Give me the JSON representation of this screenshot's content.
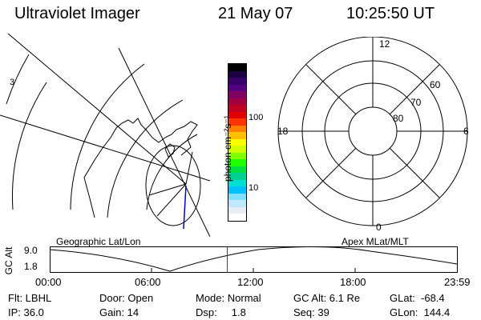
{
  "header": {
    "title": "Ultraviolet Imager",
    "date": "21 May 07",
    "time": "10:25:50 UT"
  },
  "geo_panel": {
    "label": "Geographic Lat/Lon",
    "edge_mark": "3"
  },
  "colorbar": {
    "unit_label": "photon cm⁻²s⁻¹",
    "ticks": [
      "100",
      "10"
    ],
    "colors": [
      "#000000",
      "#1a0040",
      "#3a006a",
      "#54007f",
      "#800060",
      "#a00040",
      "#c00020",
      "#e00000",
      "#ff3300",
      "#ff8000",
      "#ffc000",
      "#ffff00",
      "#d0ff00",
      "#80ff00",
      "#20ff00",
      "#00e040",
      "#00d090",
      "#00e0d0",
      "#00c0ff",
      "#80e0ff",
      "#c0e8ff",
      "#e6eef5",
      "#ffffff"
    ]
  },
  "polar_panel": {
    "label": "Apex MLat/MLT",
    "mlt_labels": {
      "top": "12",
      "right": "6",
      "bottom": "0",
      "left": "18"
    },
    "mlat_labels": [
      "60",
      "70",
      "80"
    ]
  },
  "altitude_plot": {
    "ylabel": "GC Alt",
    "yticks": [
      "9.0",
      "1.8"
    ],
    "xticks": [
      "00:00",
      "06:00",
      "12:00",
      "18:00",
      "23:59"
    ],
    "marker_time": "10:25:50",
    "marker_color": "#dd0000"
  },
  "status": {
    "flt": "Flt: LBHL",
    "ip": "IP: 36.0",
    "door": "Door: Open",
    "gain": "Gain: 14",
    "mode": "Mode: Normal",
    "dsp": "Dsp:     1.8",
    "gc_alt": "GC Alt: 6.1 Re",
    "seq": "Seq: 39",
    "glat": "GLat:  -68.4",
    "glon": "GLon:  144.4"
  }
}
